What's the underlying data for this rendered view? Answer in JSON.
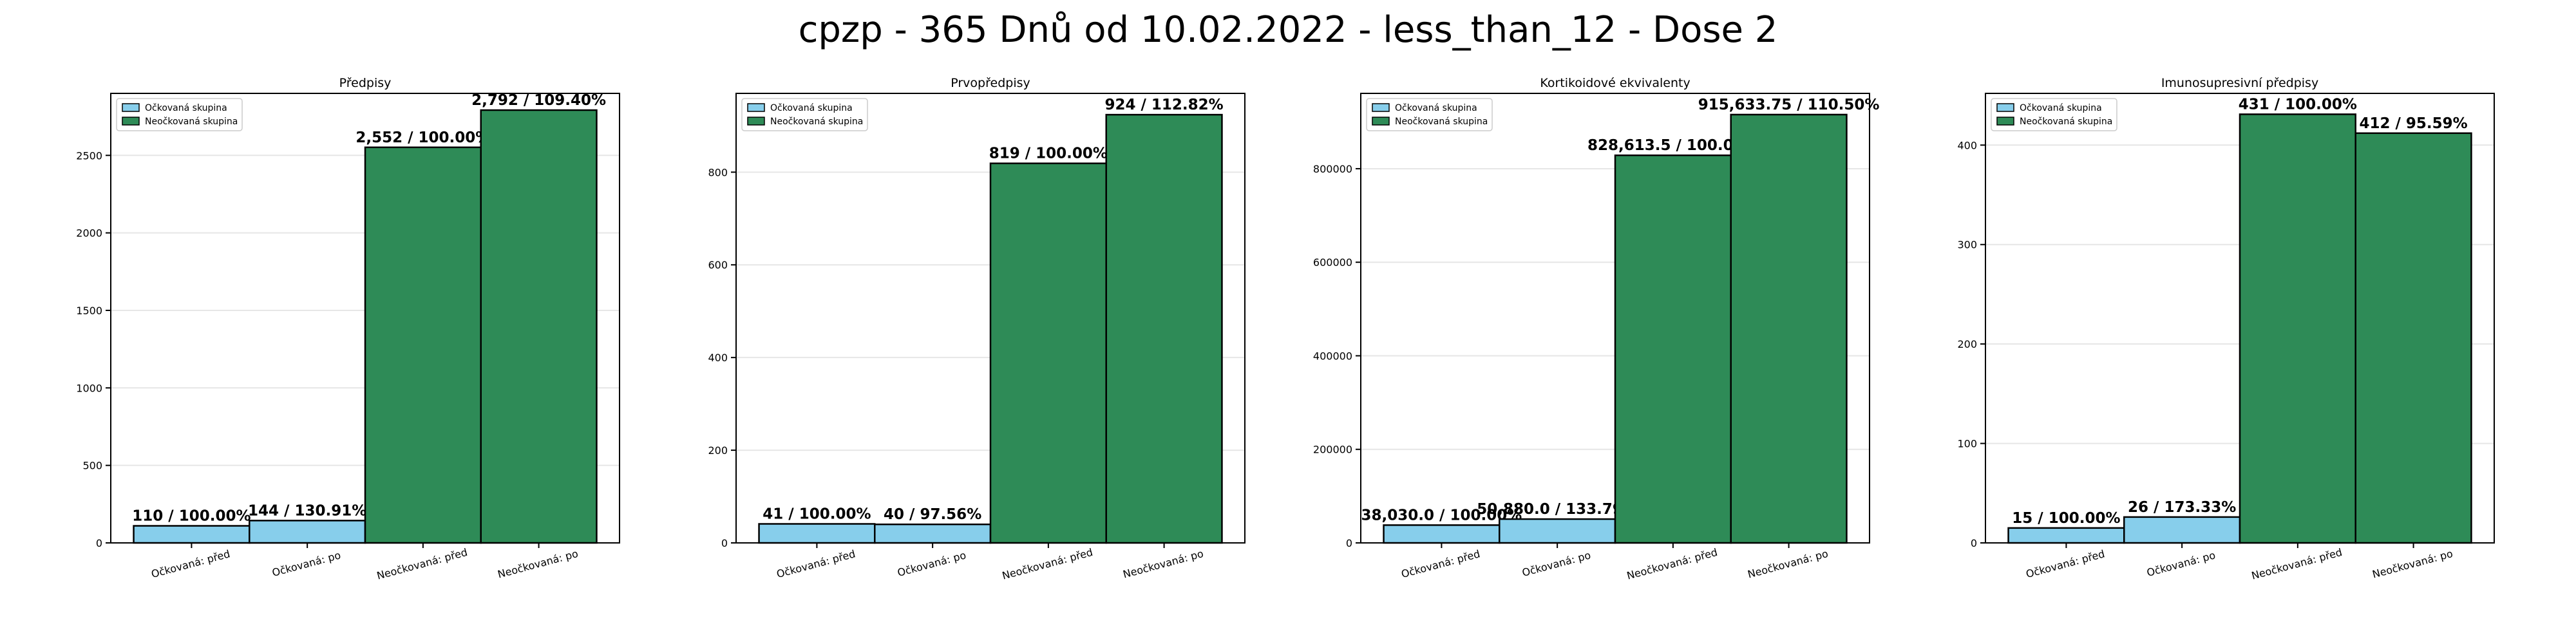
{
  "suptitle": "cpzp - 365 Dnů od 10.02.2022 - less_than_12 - Dose 2",
  "colors": {
    "vaccinated": "#87CEEB",
    "unvaccinated": "#2E8B57",
    "edge": "#000000",
    "grid": "#e6e6e6"
  },
  "chart_data": [
    {
      "type": "bar",
      "title": "Předpisy",
      "categories": [
        "Očkovaná: před",
        "Očkovaná: po",
        "Neočkovaná: před",
        "Neočkovaná: po"
      ],
      "values": [
        110,
        144,
        2552,
        2792
      ],
      "value_labels": [
        "110 / 100.00%",
        "144 / 130.91%",
        "2,552 / 100.00%",
        "2,792 / 109.40%"
      ],
      "groups": [
        "vaccinated",
        "vaccinated",
        "unvaccinated",
        "unvaccinated"
      ],
      "legend": [
        "Očkovaná skupina",
        "Neočkovaná skupina"
      ],
      "legend_position": "upper-left",
      "ylim": [
        0,
        2900
      ],
      "yticks": [
        0,
        500,
        1000,
        1500,
        2000,
        2500
      ],
      "ytick_labels": [
        "0",
        "500",
        "1000",
        "1500",
        "2000",
        "2500"
      ],
      "grid": true
    },
    {
      "type": "bar",
      "title": "Prvopředpisy",
      "categories": [
        "Očkovaná: před",
        "Očkovaná: po",
        "Neočkovaná: před",
        "Neočkovaná: po"
      ],
      "values": [
        41,
        40,
        819,
        924
      ],
      "value_labels": [
        "41 / 100.00%",
        "40 / 97.56%",
        "819 / 100.00%",
        "924 / 112.82%"
      ],
      "groups": [
        "vaccinated",
        "vaccinated",
        "unvaccinated",
        "unvaccinated"
      ],
      "legend": [
        "Očkovaná skupina",
        "Neočkovaná skupina"
      ],
      "legend_position": "upper-left",
      "ylim": [
        0,
        970
      ],
      "yticks": [
        0,
        200,
        400,
        600,
        800
      ],
      "ytick_labels": [
        "0",
        "200",
        "400",
        "600",
        "800"
      ],
      "grid": true
    },
    {
      "type": "bar",
      "title": "Kortikoidové ekvivalenty",
      "categories": [
        "Očkovaná: před",
        "Očkovaná: po",
        "Neočkovaná: před",
        "Neočkovaná: po"
      ],
      "values": [
        38030.0,
        50880.0,
        828613.5,
        915633.75
      ],
      "value_labels": [
        "38,030.0 / 100.00%",
        "50,880.0 / 133.79%",
        "828,613.5 / 100.00%",
        "915,633.75 / 110.50%"
      ],
      "groups": [
        "vaccinated",
        "vaccinated",
        "unvaccinated",
        "unvaccinated"
      ],
      "legend": [
        "Očkovaná skupina",
        "Neočkovaná skupina"
      ],
      "legend_position": "upper-left",
      "ylim": [
        0,
        961000
      ],
      "yticks": [
        0,
        200000,
        400000,
        600000,
        800000
      ],
      "ytick_labels": [
        "0",
        "200000",
        "400000",
        "600000",
        "800000"
      ],
      "grid": true
    },
    {
      "type": "bar",
      "title": "Imunosupresivní předpisy",
      "categories": [
        "Očkovaná: před",
        "Očkovaná: po",
        "Neočkovaná: před",
        "Neočkovaná: po"
      ],
      "values": [
        15,
        26,
        431,
        412
      ],
      "value_labels": [
        "15 / 100.00%",
        "26 / 173.33%",
        "431 / 100.00%",
        "412 / 95.59%"
      ],
      "groups": [
        "vaccinated",
        "vaccinated",
        "unvaccinated",
        "unvaccinated"
      ],
      "legend": [
        "Očkovaná skupina",
        "Neočkovaná skupina"
      ],
      "legend_position": "upper-left",
      "ylim": [
        0,
        452
      ],
      "yticks": [
        0,
        100,
        200,
        300,
        400
      ],
      "ytick_labels": [
        "0",
        "100",
        "200",
        "300",
        "400"
      ],
      "grid": true
    }
  ]
}
